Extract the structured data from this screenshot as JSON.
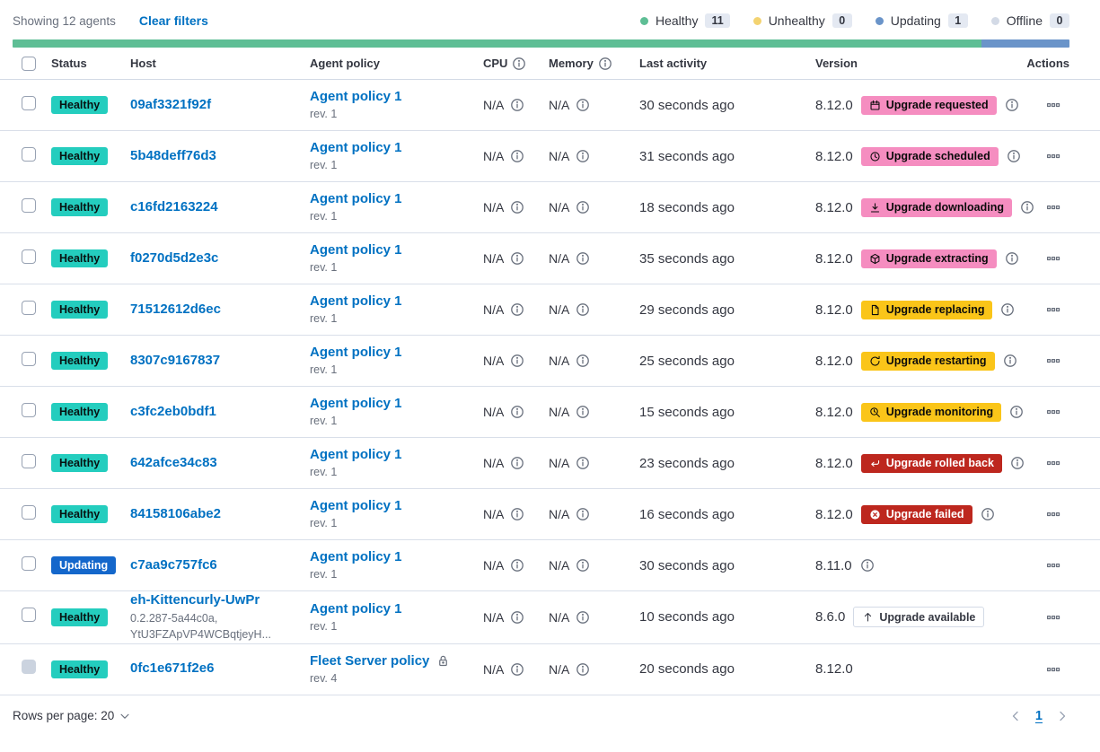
{
  "toolbar": {
    "showing": "Showing 12 agents",
    "clear_filters": "Clear filters"
  },
  "legend": [
    {
      "label": "Healthy",
      "count": "11",
      "color": "#5EBE95"
    },
    {
      "label": "Unhealthy",
      "count": "0",
      "color": "#F3D371"
    },
    {
      "label": "Updating",
      "count": "1",
      "color": "#6A94C9"
    },
    {
      "label": "Offline",
      "count": "0",
      "color": "#D3DAE6"
    }
  ],
  "health_bar": {
    "segments": [
      {
        "status": "healthy",
        "count": 11,
        "percent": 91.67,
        "color": "#5EBE95"
      },
      {
        "status": "updating",
        "count": 1,
        "percent": 8.33,
        "color": "#6A94C9"
      }
    ]
  },
  "status_colors": {
    "healthy_badge": "#24CDBE",
    "updating_badge": "#1467CB",
    "upgrade_pink": "#F58DC0",
    "upgrade_warning": "#FAC519",
    "upgrade_danger": "#BD271E",
    "link_blue": "#0071C2"
  },
  "table": {
    "columns": [
      "Status",
      "Host",
      "Agent policy",
      "CPU",
      "Memory",
      "Last activity",
      "Version",
      "Actions"
    ],
    "rows": [
      {
        "status_label": "Healthy",
        "status_variant": "healthy",
        "host": "09af3321f92f",
        "host_sub": null,
        "policy_name": "Agent policy 1",
        "policy_rev": "rev. 1",
        "policy_lock": false,
        "cpu": "N/A",
        "memory": "N/A",
        "last_activity": "30 seconds ago",
        "version": "8.12.0",
        "upgrade": {
          "label": "Upgrade requested",
          "variant": "pink",
          "icon": "calendar"
        },
        "version_info": true,
        "checkbox_disabled": false
      },
      {
        "status_label": "Healthy",
        "status_variant": "healthy",
        "host": "5b48deff76d3",
        "host_sub": null,
        "policy_name": "Agent policy 1",
        "policy_rev": "rev. 1",
        "policy_lock": false,
        "cpu": "N/A",
        "memory": "N/A",
        "last_activity": "31 seconds ago",
        "version": "8.12.0",
        "upgrade": {
          "label": "Upgrade scheduled",
          "variant": "pink",
          "icon": "clock"
        },
        "version_info": true,
        "checkbox_disabled": false
      },
      {
        "status_label": "Healthy",
        "status_variant": "healthy",
        "host": "c16fd2163224",
        "host_sub": null,
        "policy_name": "Agent policy 1",
        "policy_rev": "rev. 1",
        "policy_lock": false,
        "cpu": "N/A",
        "memory": "N/A",
        "last_activity": "18 seconds ago",
        "version": "8.12.0",
        "upgrade": {
          "label": "Upgrade downloading",
          "variant": "pink",
          "icon": "download"
        },
        "version_info": true,
        "checkbox_disabled": false
      },
      {
        "status_label": "Healthy",
        "status_variant": "healthy",
        "host": "f0270d5d2e3c",
        "host_sub": null,
        "policy_name": "Agent policy 1",
        "policy_rev": "rev. 1",
        "policy_lock": false,
        "cpu": "N/A",
        "memory": "N/A",
        "last_activity": "35 seconds ago",
        "version": "8.12.0",
        "upgrade": {
          "label": "Upgrade extracting",
          "variant": "pink",
          "icon": "package"
        },
        "version_info": true,
        "checkbox_disabled": false
      },
      {
        "status_label": "Healthy",
        "status_variant": "healthy",
        "host": "71512612d6ec",
        "host_sub": null,
        "policy_name": "Agent policy 1",
        "policy_rev": "rev. 1",
        "policy_lock": false,
        "cpu": "N/A",
        "memory": "N/A",
        "last_activity": "29 seconds ago",
        "version": "8.12.0",
        "upgrade": {
          "label": "Upgrade replacing",
          "variant": "warning",
          "icon": "document"
        },
        "version_info": true,
        "checkbox_disabled": false
      },
      {
        "status_label": "Healthy",
        "status_variant": "healthy",
        "host": "8307c9167837",
        "host_sub": null,
        "policy_name": "Agent policy 1",
        "policy_rev": "rev. 1",
        "policy_lock": false,
        "cpu": "N/A",
        "memory": "N/A",
        "last_activity": "25 seconds ago",
        "version": "8.12.0",
        "upgrade": {
          "label": "Upgrade restarting",
          "variant": "warning",
          "icon": "refresh"
        },
        "version_info": true,
        "checkbox_disabled": false
      },
      {
        "status_label": "Healthy",
        "status_variant": "healthy",
        "host": "c3fc2eb0bdf1",
        "host_sub": null,
        "policy_name": "Agent policy 1",
        "policy_rev": "rev. 1",
        "policy_lock": false,
        "cpu": "N/A",
        "memory": "N/A",
        "last_activity": "15 seconds ago",
        "version": "8.12.0",
        "upgrade": {
          "label": "Upgrade monitoring",
          "variant": "warning",
          "icon": "inspect"
        },
        "version_info": true,
        "checkbox_disabled": false
      },
      {
        "status_label": "Healthy",
        "status_variant": "healthy",
        "host": "642afce34c83",
        "host_sub": null,
        "policy_name": "Agent policy 1",
        "policy_rev": "rev. 1",
        "policy_lock": false,
        "cpu": "N/A",
        "memory": "N/A",
        "last_activity": "23 seconds ago",
        "version": "8.12.0",
        "upgrade": {
          "label": "Upgrade rolled back",
          "variant": "danger",
          "icon": "return"
        },
        "version_info": true,
        "checkbox_disabled": false
      },
      {
        "status_label": "Healthy",
        "status_variant": "healthy",
        "host": "84158106abe2",
        "host_sub": null,
        "policy_name": "Agent policy 1",
        "policy_rev": "rev. 1",
        "policy_lock": false,
        "cpu": "N/A",
        "memory": "N/A",
        "last_activity": "16 seconds ago",
        "version": "8.12.0",
        "upgrade": {
          "label": "Upgrade failed",
          "variant": "danger",
          "icon": "error"
        },
        "version_info": true,
        "checkbox_disabled": false
      },
      {
        "status_label": "Updating",
        "status_variant": "updating",
        "host": "c7aa9c757fc6",
        "host_sub": null,
        "policy_name": "Agent policy 1",
        "policy_rev": "rev. 1",
        "policy_lock": false,
        "cpu": "N/A",
        "memory": "N/A",
        "last_activity": "30 seconds ago",
        "version": "8.11.0",
        "upgrade": null,
        "version_info": true,
        "checkbox_disabled": false
      },
      {
        "status_label": "Healthy",
        "status_variant": "healthy",
        "host": "eh-Kittencurly-UwPr",
        "host_sub": "0.2.287-5a44c0a,\nYtU3FZApVP4WCBqtjeyH...",
        "policy_name": "Agent policy 1",
        "policy_rev": "rev. 1",
        "policy_lock": false,
        "cpu": "N/A",
        "memory": "N/A",
        "last_activity": "10 seconds ago",
        "version": "8.6.0",
        "upgrade": {
          "label": "Upgrade available",
          "variant": "hollow",
          "icon": "arrow-up"
        },
        "version_info": false,
        "checkbox_disabled": false
      },
      {
        "status_label": "Healthy",
        "status_variant": "healthy",
        "host": "0fc1e671f2e6",
        "host_sub": null,
        "policy_name": "Fleet Server policy",
        "policy_rev": "rev. 4",
        "policy_lock": true,
        "cpu": "N/A",
        "memory": "N/A",
        "last_activity": "20 seconds ago",
        "version": "8.12.0",
        "upgrade": null,
        "version_info": false,
        "checkbox_disabled": true
      }
    ]
  },
  "footer": {
    "rows_per_page": "Rows per page: 20",
    "page": "1"
  }
}
